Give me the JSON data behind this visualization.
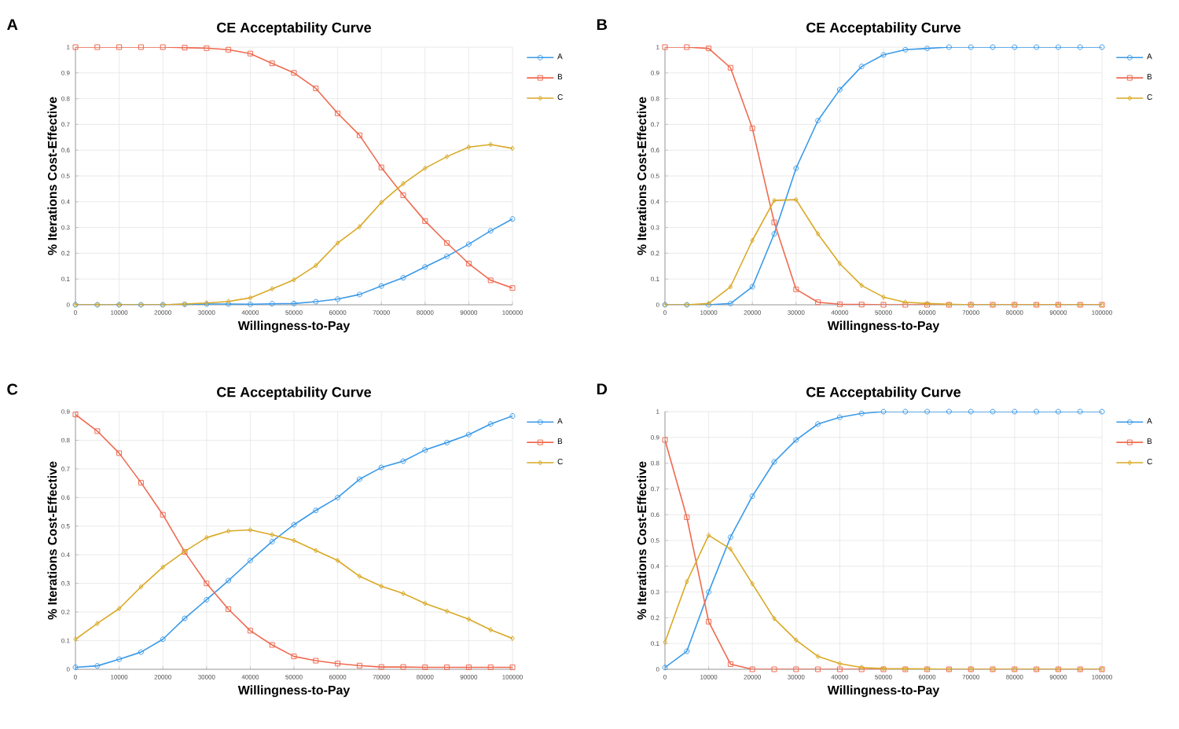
{
  "chart_data": [
    {
      "type": "line",
      "title": "CE  Acceptability Curve",
      "xlabel": "Willingness-to-Pay",
      "ylabel": "%  Iterations Cost-Effective",
      "annotations": [
        "A"
      ],
      "grid": true,
      "legend": "top right",
      "x": [
        0,
        5000,
        10000,
        15000,
        20000,
        25000,
        30000,
        35000,
        40000,
        45000,
        50000,
        55000,
        60000,
        65000,
        70000,
        75000,
        80000,
        85000,
        90000,
        95000,
        100000
      ],
      "xlim": [
        0,
        100000
      ],
      "xticks": [
        0,
        10000,
        20000,
        30000,
        40000,
        50000,
        60000,
        70000,
        80000,
        90000,
        100000
      ],
      "ylim": [
        0,
        1
      ],
      "yticks": [
        0,
        0.1,
        0.2,
        0.3,
        0.4,
        0.5,
        0.6,
        0.7,
        0.8,
        0.9,
        1
      ],
      "series": [
        {
          "name": "A",
          "color": "#3a9ae8",
          "marker": "circle",
          "values": [
            0,
            0,
            0,
            0,
            0,
            0.002,
            0.003,
            0.003,
            0.002,
            0.004,
            0.005,
            0.012,
            0.022,
            0.04,
            0.073,
            0.105,
            0.147,
            0.188,
            0.235,
            0.287,
            0.333
          ]
        },
        {
          "name": "B",
          "color": "#ef6a50",
          "marker": "square",
          "values": [
            1,
            1,
            1,
            1,
            1,
            0.998,
            0.996,
            0.99,
            0.975,
            0.937,
            0.9,
            0.84,
            0.743,
            0.658,
            0.533,
            0.425,
            0.325,
            0.24,
            0.16,
            0.095,
            0.065
          ]
        },
        {
          "name": "C",
          "color": "#d9a925",
          "marker": "diamond",
          "values": [
            0,
            0,
            0,
            0,
            0,
            0.003,
            0.007,
            0.013,
            0.027,
            0.062,
            0.097,
            0.152,
            0.24,
            0.303,
            0.397,
            0.47,
            0.53,
            0.575,
            0.612,
            0.622,
            0.607
          ]
        }
      ]
    },
    {
      "type": "line",
      "title": "CE  Acceptability Curve",
      "xlabel": "Willingness-to-Pay",
      "ylabel": "%  Iterations Cost-Effective",
      "annotations": [
        "B"
      ],
      "grid": true,
      "legend": "top right",
      "x": [
        0,
        5000,
        10000,
        15000,
        20000,
        25000,
        30000,
        35000,
        40000,
        45000,
        50000,
        55000,
        60000,
        65000,
        70000,
        75000,
        80000,
        85000,
        90000,
        95000,
        100000
      ],
      "xlim": [
        0,
        100000
      ],
      "xticks": [
        0,
        10000,
        20000,
        30000,
        40000,
        50000,
        60000,
        70000,
        80000,
        90000,
        100000
      ],
      "ylim": [
        0,
        1
      ],
      "yticks": [
        0,
        0.1,
        0.2,
        0.3,
        0.4,
        0.5,
        0.6,
        0.7,
        0.8,
        0.9,
        1
      ],
      "series": [
        {
          "name": "A",
          "color": "#3a9ae8",
          "marker": "circle",
          "values": [
            0,
            0,
            0,
            0.005,
            0.07,
            0.275,
            0.53,
            0.715,
            0.835,
            0.925,
            0.97,
            0.99,
            0.995,
            1,
            1,
            1,
            1,
            1,
            1,
            1,
            1
          ]
        },
        {
          "name": "B",
          "color": "#ef6a50",
          "marker": "square",
          "values": [
            1,
            1,
            0.995,
            0.92,
            0.685,
            0.32,
            0.06,
            0.01,
            0.002,
            0.001,
            0,
            0,
            0,
            0,
            0,
            0,
            0,
            0,
            0,
            0,
            0
          ]
        },
        {
          "name": "C",
          "color": "#d9a925",
          "marker": "diamond",
          "values": [
            0,
            0,
            0.005,
            0.07,
            0.25,
            0.405,
            0.408,
            0.275,
            0.16,
            0.075,
            0.03,
            0.01,
            0.005,
            0.002,
            0,
            0,
            0,
            0,
            0,
            0,
            0
          ]
        }
      ]
    },
    {
      "type": "line",
      "title": "CE  Acceptability Curve",
      "xlabel": "Willingness-to-Pay",
      "ylabel": "%  Iterations Cost-Effective",
      "annotations": [
        "C"
      ],
      "grid": true,
      "legend": "top right",
      "x": [
        0,
        5000,
        10000,
        15000,
        20000,
        25000,
        30000,
        35000,
        40000,
        45000,
        50000,
        55000,
        60000,
        65000,
        70000,
        75000,
        80000,
        85000,
        90000,
        95000,
        100000
      ],
      "xlim": [
        0,
        100000
      ],
      "xticks": [
        0,
        10000,
        20000,
        30000,
        40000,
        50000,
        60000,
        70000,
        80000,
        90000,
        100000
      ],
      "ylim": [
        0,
        0.9
      ],
      "yticks": [
        0,
        0.1,
        0.2,
        0.3,
        0.4,
        0.5,
        0.6,
        0.7,
        0.8,
        0.9
      ],
      "series": [
        {
          "name": "A",
          "color": "#3a9ae8",
          "marker": "circle",
          "values": [
            0.007,
            0.012,
            0.035,
            0.06,
            0.105,
            0.178,
            0.243,
            0.31,
            0.38,
            0.446,
            0.505,
            0.555,
            0.6,
            0.664,
            0.705,
            0.727,
            0.766,
            0.792,
            0.82,
            0.857,
            0.885
          ]
        },
        {
          "name": "B",
          "color": "#ef6a50",
          "marker": "square",
          "values": [
            0.89,
            0.832,
            0.755,
            0.652,
            0.54,
            0.41,
            0.3,
            0.21,
            0.135,
            0.085,
            0.045,
            0.03,
            0.02,
            0.013,
            0.008,
            0.008,
            0.007,
            0.007,
            0.007,
            0.007,
            0.007
          ]
        },
        {
          "name": "C",
          "color": "#d9a925",
          "marker": "diamond",
          "values": [
            0.105,
            0.16,
            0.212,
            0.288,
            0.357,
            0.412,
            0.46,
            0.483,
            0.487,
            0.47,
            0.45,
            0.415,
            0.38,
            0.325,
            0.29,
            0.265,
            0.23,
            0.203,
            0.175,
            0.138,
            0.108
          ]
        }
      ]
    },
    {
      "type": "line",
      "title": "CE  Acceptability Curve",
      "xlabel": "Willingness-to-Pay",
      "ylabel": "%  Iterations Cost-Effective",
      "annotations": [
        "D"
      ],
      "grid": true,
      "legend": "top right",
      "x": [
        0,
        5000,
        10000,
        15000,
        20000,
        25000,
        30000,
        35000,
        40000,
        45000,
        50000,
        55000,
        60000,
        65000,
        70000,
        75000,
        80000,
        85000,
        90000,
        95000,
        100000
      ],
      "xlim": [
        0,
        100000
      ],
      "xticks": [
        0,
        10000,
        20000,
        30000,
        40000,
        50000,
        60000,
        70000,
        80000,
        90000,
        100000
      ],
      "ylim": [
        0,
        1
      ],
      "yticks": [
        0,
        0.1,
        0.2,
        0.3,
        0.4,
        0.5,
        0.6,
        0.7,
        0.8,
        0.9,
        1
      ],
      "series": [
        {
          "name": "A",
          "color": "#3a9ae8",
          "marker": "circle",
          "values": [
            0.007,
            0.07,
            0.3,
            0.513,
            0.672,
            0.805,
            0.89,
            0.952,
            0.978,
            0.993,
            1,
            1,
            1,
            1,
            1,
            1,
            1,
            1,
            1,
            1,
            1
          ]
        },
        {
          "name": "B",
          "color": "#ef6a50",
          "marker": "square",
          "values": [
            0.89,
            0.59,
            0.185,
            0.02,
            0,
            0,
            0,
            0,
            0,
            0,
            0,
            0,
            0,
            0,
            0,
            0,
            0,
            0,
            0,
            0,
            0
          ]
        },
        {
          "name": "C",
          "color": "#d9a925",
          "marker": "diamond",
          "values": [
            0.105,
            0.34,
            0.52,
            0.467,
            0.332,
            0.197,
            0.113,
            0.05,
            0.022,
            0.007,
            0.003,
            0.002,
            0.001,
            0,
            0,
            0,
            0,
            0,
            0,
            0,
            0
          ]
        }
      ]
    }
  ]
}
